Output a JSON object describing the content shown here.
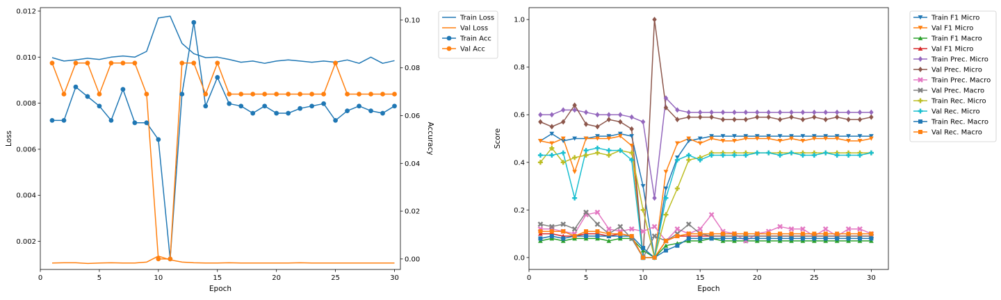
{
  "chart_data": [
    {
      "type": "line",
      "xlabel": "Epoch",
      "ylabel": "Loss",
      "y2label": "Accuracy",
      "x": [
        1,
        2,
        3,
        4,
        5,
        6,
        7,
        8,
        9,
        10,
        11,
        12,
        13,
        14,
        15,
        16,
        17,
        18,
        19,
        20,
        21,
        22,
        23,
        24,
        25,
        26,
        27,
        28,
        29,
        30
      ],
      "xlim": [
        0.0,
        30.5
      ],
      "ylim": [
        0.00078,
        0.01215
      ],
      "y2lim": [
        -0.0044,
        0.1052
      ],
      "xticks": [
        0,
        5,
        10,
        15,
        20,
        25,
        30
      ],
      "yticks": [
        0.002,
        0.004,
        0.006,
        0.008,
        0.01,
        0.012
      ],
      "ytick_labels": [
        "0.002",
        "0.004",
        "0.006",
        "0.008",
        "0.010",
        "0.012"
      ],
      "y2ticks": [
        0.0,
        0.02,
        0.04,
        0.06,
        0.08,
        0.1
      ],
      "y2tick_labels": [
        "0.00",
        "0.02",
        "0.04",
        "0.06",
        "0.08",
        "0.10"
      ],
      "legend_position": "outside right, top",
      "series": [
        {
          "name": "Train Loss",
          "axis": "left",
          "color": "#1f77b4",
          "marker": "none",
          "values": [
            0.00998,
            0.00983,
            0.00988,
            0.00995,
            0.0099,
            0.01,
            0.01005,
            0.01,
            0.01025,
            0.0117,
            0.01178,
            0.0106,
            0.01015,
            0.00998,
            0.01,
            0.0099,
            0.00978,
            0.00983,
            0.00973,
            0.00983,
            0.00988,
            0.00983,
            0.00978,
            0.00983,
            0.00978,
            0.00988,
            0.00973,
            0.01,
            0.00973,
            0.00985
          ]
        },
        {
          "name": "Val Loss",
          "axis": "left",
          "color": "#ff7f0e",
          "marker": "none",
          "values": [
            0.00106,
            0.00107,
            0.00107,
            0.00104,
            0.00106,
            0.00107,
            0.00106,
            0.00106,
            0.0011,
            0.00136,
            0.0012,
            0.0011,
            0.00107,
            0.00106,
            0.00106,
            0.00107,
            0.00106,
            0.00106,
            0.00106,
            0.00106,
            0.00106,
            0.00107,
            0.00106,
            0.00106,
            0.00106,
            0.00106,
            0.00106,
            0.00106,
            0.00106,
            0.00106
          ]
        },
        {
          "name": "Train Acc",
          "axis": "right",
          "color": "#1f77b4",
          "marker": "circle",
          "values": [
            0.058,
            0.058,
            0.072,
            0.068,
            0.064,
            0.058,
            0.071,
            0.057,
            0.057,
            0.05,
            0.0,
            0.069,
            0.099,
            0.064,
            0.076,
            0.065,
            0.064,
            0.061,
            0.064,
            0.061,
            0.061,
            0.063,
            0.064,
            0.065,
            0.058,
            0.062,
            0.064,
            0.062,
            0.061,
            0.064
          ]
        },
        {
          "name": "Val Acc",
          "axis": "right",
          "color": "#ff7f0e",
          "marker": "circle",
          "values": [
            0.082,
            0.069,
            0.082,
            0.082,
            0.069,
            0.082,
            0.082,
            0.082,
            0.069,
            0.0,
            0.0,
            0.082,
            0.082,
            0.069,
            0.082,
            0.069,
            0.069,
            0.069,
            0.069,
            0.069,
            0.069,
            0.069,
            0.069,
            0.069,
            0.082,
            0.069,
            0.069,
            0.069,
            0.069,
            0.069
          ]
        }
      ]
    },
    {
      "type": "line",
      "xlabel": "Epoch",
      "ylabel": "Score",
      "x": [
        1,
        2,
        3,
        4,
        5,
        6,
        7,
        8,
        9,
        10,
        11,
        12,
        13,
        14,
        15,
        16,
        17,
        18,
        19,
        20,
        21,
        22,
        23,
        24,
        25,
        26,
        27,
        28,
        29,
        30
      ],
      "xlim": [
        0.0,
        31.5
      ],
      "ylim": [
        -0.05,
        1.05
      ],
      "xticks": [
        0,
        5,
        10,
        15,
        20,
        25,
        30
      ],
      "yticks": [
        0.0,
        0.2,
        0.4,
        0.6,
        0.8,
        1.0
      ],
      "ytick_labels": [
        "0.0",
        "0.2",
        "0.4",
        "0.6",
        "0.8",
        "1.0"
      ],
      "legend_position": "outside right, top",
      "series": [
        {
          "name": "Train F1 Micro",
          "color": "#1f77b4",
          "marker": "tri-down",
          "values": [
            0.49,
            0.52,
            0.49,
            0.5,
            0.5,
            0.51,
            0.51,
            0.52,
            0.51,
            0.3,
            0.0,
            0.29,
            0.42,
            0.49,
            0.5,
            0.51,
            0.51,
            0.51,
            0.51,
            0.51,
            0.51,
            0.51,
            0.51,
            0.51,
            0.51,
            0.51,
            0.51,
            0.51,
            0.51,
            0.51
          ]
        },
        {
          "name": "Val F1 Micro",
          "color": "#ff7f0e",
          "marker": "tri-down",
          "values": [
            0.49,
            0.48,
            0.5,
            0.36,
            0.5,
            0.5,
            0.5,
            0.51,
            0.47,
            0.0,
            0.0,
            0.36,
            0.48,
            0.5,
            0.48,
            0.5,
            0.49,
            0.49,
            0.5,
            0.5,
            0.5,
            0.49,
            0.5,
            0.49,
            0.5,
            0.5,
            0.5,
            0.49,
            0.49,
            0.5
          ]
        },
        {
          "name": "Train F1 Macro",
          "color": "#2ca02c",
          "marker": "tri-up",
          "values": [
            0.07,
            0.08,
            0.07,
            0.08,
            0.08,
            0.08,
            0.07,
            0.08,
            0.08,
            0.03,
            0.0,
            0.05,
            0.06,
            0.07,
            0.07,
            0.08,
            0.07,
            0.07,
            0.07,
            0.07,
            0.07,
            0.07,
            0.07,
            0.07,
            0.07,
            0.07,
            0.07,
            0.07,
            0.07,
            0.07
          ]
        },
        {
          "name": "Val F1 Micro",
          "color": "#d62728",
          "marker": "tri-up",
          "values": [
            0.1,
            0.1,
            0.09,
            0.09,
            0.1,
            0.1,
            0.09,
            0.1,
            0.09,
            0.0,
            0.0,
            0.07,
            0.09,
            0.09,
            0.09,
            0.09,
            0.09,
            0.09,
            0.09,
            0.09,
            0.09,
            0.09,
            0.09,
            0.09,
            0.09,
            0.09,
            0.09,
            0.09,
            0.09,
            0.09
          ]
        },
        {
          "name": "Train Prec. Micro",
          "color": "#9467bd",
          "marker": "diamond",
          "values": [
            0.6,
            0.6,
            0.62,
            0.62,
            0.61,
            0.6,
            0.6,
            0.6,
            0.59,
            0.57,
            0.25,
            0.67,
            0.62,
            0.61,
            0.61,
            0.61,
            0.61,
            0.61,
            0.61,
            0.61,
            0.61,
            0.61,
            0.61,
            0.61,
            0.61,
            0.61,
            0.61,
            0.61,
            0.61,
            0.61
          ]
        },
        {
          "name": "Val Prec. Micro",
          "color": "#8c564b",
          "marker": "diamond",
          "values": [
            0.57,
            0.55,
            0.57,
            0.64,
            0.56,
            0.55,
            0.58,
            0.57,
            0.54,
            0.0,
            1.0,
            0.63,
            0.58,
            0.59,
            0.59,
            0.59,
            0.58,
            0.58,
            0.58,
            0.59,
            0.59,
            0.58,
            0.59,
            0.58,
            0.59,
            0.58,
            0.59,
            0.58,
            0.58,
            0.59
          ]
        },
        {
          "name": "Train Prec. Macro",
          "color": "#e377c2",
          "marker": "x",
          "values": [
            0.12,
            0.12,
            0.11,
            0.1,
            0.18,
            0.19,
            0.12,
            0.11,
            0.12,
            0.11,
            0.13,
            0.07,
            0.12,
            0.1,
            0.12,
            0.18,
            0.11,
            0.1,
            0.07,
            0.1,
            0.11,
            0.13,
            0.12,
            0.12,
            0.09,
            0.12,
            0.09,
            0.12,
            0.12,
            0.1
          ]
        },
        {
          "name": "Val Prec. Macro",
          "color": "#7f7f7f",
          "marker": "x",
          "values": [
            0.14,
            0.13,
            0.14,
            0.12,
            0.19,
            0.14,
            0.1,
            0.13,
            0.08,
            0.0,
            0.09,
            0.07,
            0.1,
            0.14,
            0.1,
            0.09,
            0.09,
            0.09,
            0.09,
            0.09,
            0.09,
            0.09,
            0.09,
            0.09,
            0.09,
            0.09,
            0.09,
            0.09,
            0.09,
            0.09
          ]
        },
        {
          "name": "Train Rec. Micro",
          "color": "#bcbd22",
          "marker": "plus",
          "values": [
            0.4,
            0.46,
            0.4,
            0.42,
            0.43,
            0.44,
            0.43,
            0.45,
            0.44,
            0.2,
            0.0,
            0.18,
            0.29,
            0.41,
            0.42,
            0.44,
            0.44,
            0.44,
            0.44,
            0.44,
            0.44,
            0.44,
            0.44,
            0.44,
            0.44,
            0.44,
            0.44,
            0.44,
            0.44,
            0.44
          ]
        },
        {
          "name": "Val Rec. Micro",
          "color": "#17becf",
          "marker": "plus",
          "values": [
            0.43,
            0.43,
            0.44,
            0.25,
            0.45,
            0.46,
            0.45,
            0.45,
            0.41,
            0.0,
            0.0,
            0.25,
            0.41,
            0.43,
            0.41,
            0.43,
            0.43,
            0.43,
            0.43,
            0.44,
            0.44,
            0.43,
            0.44,
            0.43,
            0.43,
            0.44,
            0.43,
            0.43,
            0.43,
            0.44
          ]
        },
        {
          "name": "Train Rec. Macro",
          "color": "#1f77b4",
          "marker": "square",
          "values": [
            0.08,
            0.09,
            0.08,
            0.09,
            0.09,
            0.09,
            0.09,
            0.09,
            0.09,
            0.04,
            0.0,
            0.03,
            0.05,
            0.08,
            0.08,
            0.08,
            0.08,
            0.08,
            0.08,
            0.08,
            0.08,
            0.08,
            0.08,
            0.08,
            0.08,
            0.08,
            0.08,
            0.08,
            0.08,
            0.08
          ]
        },
        {
          "name": "Val Rec. Macro",
          "color": "#ff7f0e",
          "marker": "square",
          "values": [
            0.11,
            0.11,
            0.11,
            0.09,
            0.11,
            0.11,
            0.1,
            0.1,
            0.09,
            0.0,
            0.0,
            0.07,
            0.09,
            0.1,
            0.1,
            0.1,
            0.1,
            0.1,
            0.1,
            0.1,
            0.1,
            0.1,
            0.1,
            0.1,
            0.1,
            0.1,
            0.1,
            0.1,
            0.1,
            0.1
          ]
        }
      ]
    }
  ]
}
